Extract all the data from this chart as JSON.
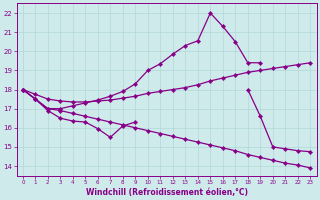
{
  "xlabel": "Windchill (Refroidissement éolien,°C)",
  "bg_color": "#ceeaea",
  "grid_color": "#b0d8d8",
  "line_color": "#880088",
  "x_ticks": [
    0,
    1,
    2,
    3,
    4,
    5,
    6,
    7,
    8,
    9,
    10,
    11,
    12,
    13,
    14,
    15,
    16,
    17,
    18,
    19,
    20,
    21,
    22,
    23
  ],
  "y_ticks": [
    14,
    15,
    16,
    17,
    18,
    19,
    20,
    21,
    22
  ],
  "ylim": [
    13.5,
    22.5
  ],
  "xlim": [
    -0.5,
    23.5
  ],
  "s_zigzag_x": [
    0,
    1,
    2,
    3,
    4,
    5,
    6,
    7,
    8,
    9,
    10,
    11,
    12,
    13,
    14,
    15,
    16,
    17,
    18,
    19
  ],
  "s_zigzag_y": [
    18.0,
    17.5,
    17.0,
    17.0,
    17.15,
    17.3,
    17.45,
    17.65,
    17.9,
    18.3,
    19.0,
    19.35,
    19.85,
    20.3,
    20.55,
    22.0,
    21.3,
    20.5,
    19.4,
    19.4
  ],
  "s_upper_x": [
    0,
    1,
    2,
    3,
    4,
    5,
    6,
    7,
    8,
    9,
    10,
    11,
    12,
    13,
    14,
    15,
    16,
    17,
    18,
    19,
    20,
    21,
    22,
    23
  ],
  "s_upper_y": [
    18.0,
    17.75,
    17.5,
    17.4,
    17.35,
    17.35,
    17.4,
    17.45,
    17.55,
    17.65,
    17.8,
    17.9,
    18.0,
    18.1,
    18.25,
    18.45,
    18.6,
    18.75,
    18.9,
    19.0,
    19.1,
    19.2,
    19.3,
    19.4
  ],
  "s_lower_x": [
    0,
    1,
    2,
    3,
    4,
    5,
    6,
    7,
    8,
    9,
    10,
    11,
    12,
    13,
    14,
    15,
    16,
    17,
    18,
    19,
    20,
    21,
    22,
    23
  ],
  "s_lower_y": [
    18.0,
    17.5,
    17.0,
    16.9,
    16.75,
    16.6,
    16.45,
    16.3,
    16.15,
    16.0,
    15.85,
    15.7,
    15.55,
    15.4,
    15.25,
    15.1,
    14.95,
    14.8,
    14.6,
    14.45,
    14.3,
    14.15,
    14.05,
    13.9
  ],
  "s_short_x_a": [
    0,
    1,
    2,
    3,
    4,
    5,
    6,
    7,
    8,
    9
  ],
  "s_short_y_a": [
    18.0,
    17.5,
    16.9,
    16.5,
    16.35,
    16.3,
    15.95,
    15.5,
    16.1,
    16.3
  ],
  "s_short_x_b": [
    18,
    19,
    20,
    21,
    22,
    23
  ],
  "s_short_y_b": [
    18.0,
    16.6,
    15.0,
    14.9,
    14.8,
    14.75
  ]
}
